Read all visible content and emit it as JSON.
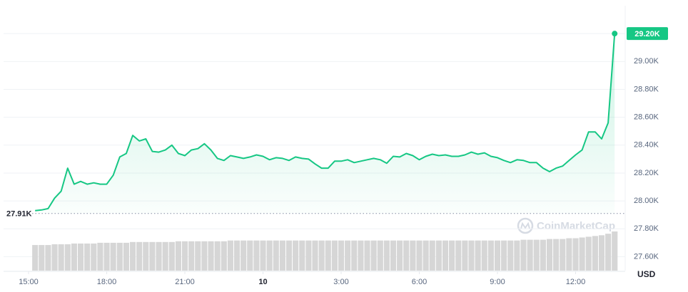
{
  "chart_data": {
    "type": "line",
    "x": [
      0.25,
      0.5,
      0.75,
      1,
      1.25,
      1.5,
      1.75,
      2,
      2.25,
      2.5,
      2.75,
      3,
      3.25,
      3.5,
      3.75,
      4,
      4.25,
      4.5,
      4.75,
      5,
      5.25,
      5.5,
      5.75,
      6,
      6.25,
      6.5,
      6.75,
      7,
      7.25,
      7.5,
      7.75,
      8,
      8.25,
      8.5,
      8.75,
      9,
      9.25,
      9.5,
      9.75,
      10,
      10.25,
      10.5,
      10.75,
      11,
      11.25,
      11.5,
      11.75,
      12,
      12.25,
      12.5,
      12.75,
      13,
      13.25,
      13.5,
      13.75,
      14,
      14.25,
      14.5,
      14.75,
      15,
      15.25,
      15.5,
      15.75,
      16,
      16.25,
      16.5,
      16.75,
      17,
      17.25,
      17.5,
      17.75,
      18,
      18.25,
      18.5,
      18.75,
      19,
      19.25,
      19.5,
      19.75,
      20,
      20.25,
      20.5,
      20.75,
      21,
      21.25,
      21.5,
      21.75,
      22,
      22.25,
      22.5
    ],
    "series": [
      {
        "name": "Price",
        "color": "#16c784",
        "values": [
          27930,
          27935,
          27945,
          28020,
          28070,
          28235,
          28120,
          28140,
          28120,
          28130,
          28120,
          28120,
          28185,
          28315,
          28340,
          28470,
          28430,
          28445,
          28355,
          28350,
          28365,
          28400,
          28340,
          28325,
          28365,
          28375,
          28410,
          28365,
          28305,
          28290,
          28325,
          28315,
          28305,
          28315,
          28330,
          28320,
          28295,
          28310,
          28305,
          28290,
          28315,
          28305,
          28300,
          28265,
          28235,
          28235,
          28285,
          28285,
          28295,
          28275,
          28285,
          28295,
          28305,
          28295,
          28270,
          28320,
          28315,
          28340,
          28325,
          28295,
          28320,
          28335,
          28325,
          28330,
          28320,
          28320,
          28330,
          28350,
          28335,
          28345,
          28320,
          28310,
          28290,
          28275,
          28295,
          28290,
          28275,
          28275,
          28235,
          28210,
          28235,
          28250,
          28290,
          28330,
          28365,
          28495,
          28495,
          28445,
          28560,
          29200
        ]
      }
    ],
    "volumes": [
      34,
      34,
      34,
      35,
      35,
      35,
      36,
      36,
      36,
      36,
      37,
      37,
      37,
      37,
      37,
      38,
      38,
      38,
      38,
      38,
      38,
      38,
      39,
      39,
      39,
      39,
      39,
      39,
      39,
      39,
      40,
      40,
      40,
      40,
      40,
      40,
      40,
      40,
      40,
      40,
      40,
      40,
      40,
      40,
      40,
      40,
      40,
      40,
      40,
      40,
      40,
      40,
      40,
      40,
      40,
      40,
      40,
      40,
      40,
      40,
      40,
      40,
      40,
      40,
      40,
      40,
      40,
      40,
      40,
      40,
      40,
      40,
      40,
      40,
      40,
      41,
      41,
      41,
      41,
      42,
      42,
      42,
      43,
      43,
      44,
      45,
      46,
      47,
      49,
      52
    ],
    "volume_color": "#d6d6d6",
    "xlim": [
      -0.96,
      22.74
    ],
    "xticks": [
      {
        "value": 0,
        "label": "15:00"
      },
      {
        "value": 3,
        "label": "18:00"
      },
      {
        "value": 6,
        "label": "21:00"
      },
      {
        "value": 9,
        "label": "10"
      },
      {
        "value": 12,
        "label": "3:00"
      },
      {
        "value": 15,
        "label": "6:00"
      },
      {
        "value": 18,
        "label": "9:00"
      },
      {
        "value": 21,
        "label": "12:00"
      }
    ],
    "ylim": [
      27500,
      29400
    ],
    "yticks": [
      {
        "value": 27600,
        "label": "27.60K"
      },
      {
        "value": 27800,
        "label": "27.80K"
      },
      {
        "value": 28000,
        "label": "28.00K"
      },
      {
        "value": 28200,
        "label": "28.20K"
      },
      {
        "value": 28400,
        "label": "28.40K"
      },
      {
        "value": 28600,
        "label": "28.60K"
      },
      {
        "value": 28800,
        "label": "28.80K"
      },
      {
        "value": 29000,
        "label": "29.00K"
      },
      {
        "value": 29200,
        "label": "29.20K"
      }
    ],
    "reference": {
      "value": 27910,
      "label": "27.91K"
    },
    "current_price": {
      "value": 29200,
      "label": "29.20K"
    },
    "y_axis_label": "USD",
    "watermark": "CoinMarketCap",
    "grid": true
  }
}
